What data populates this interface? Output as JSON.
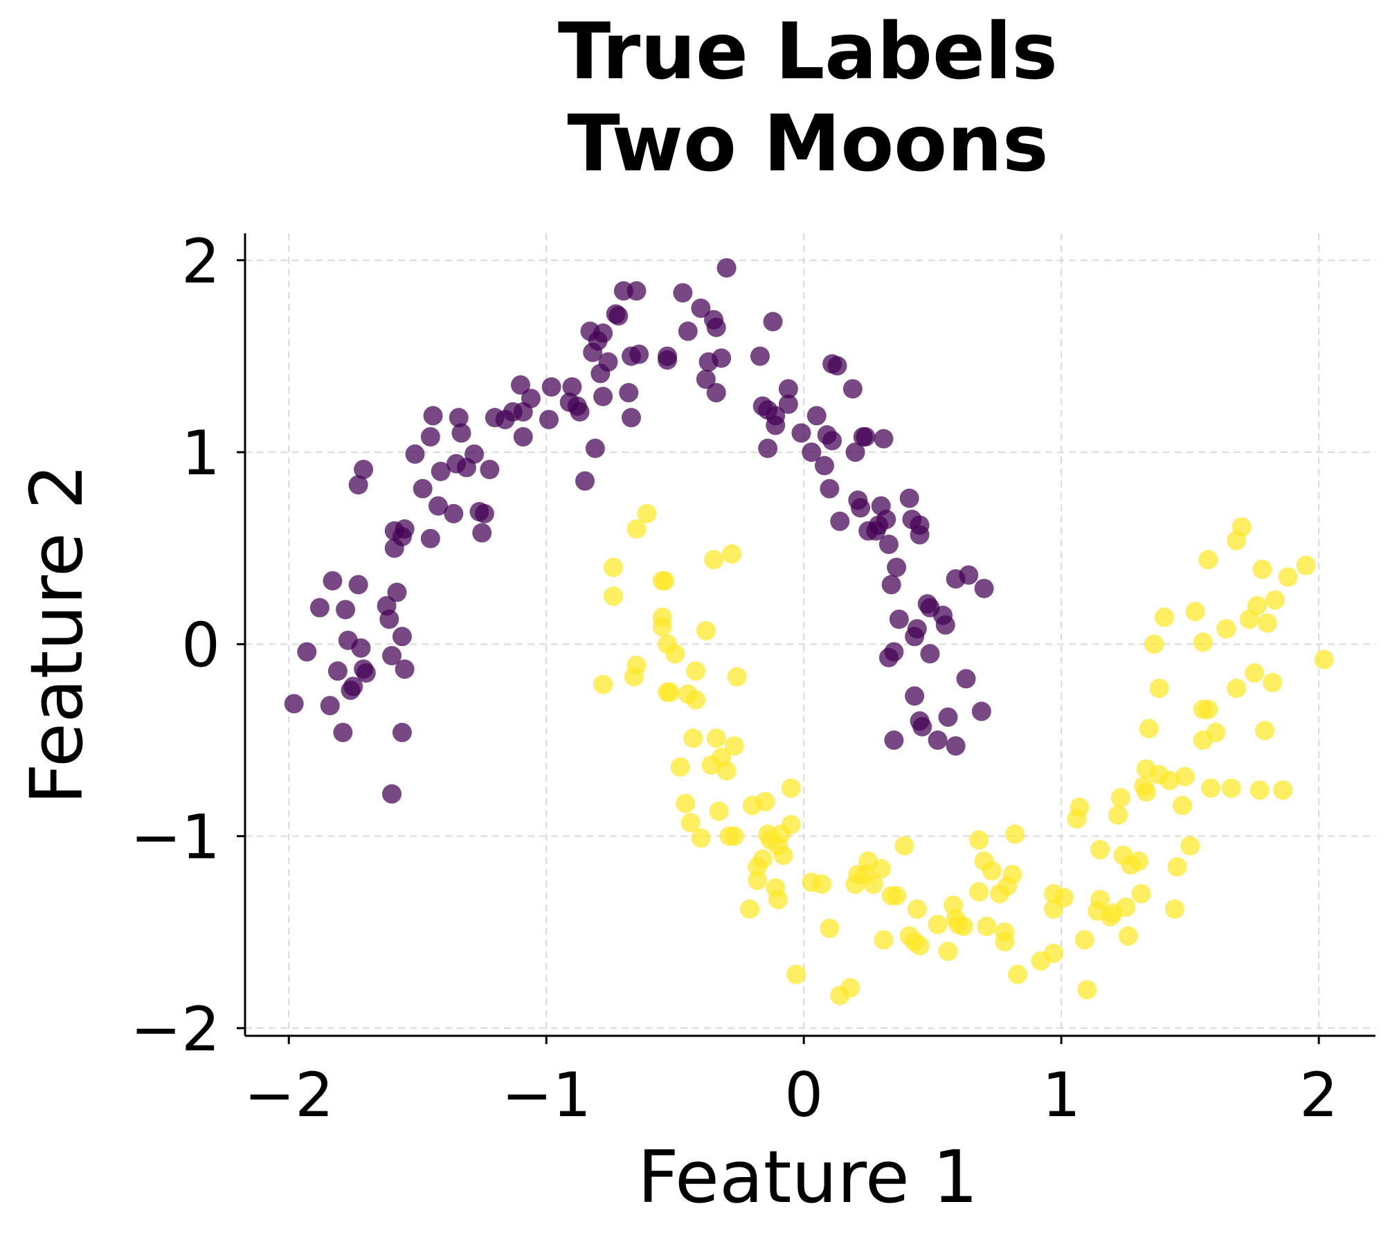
{
  "chart_data": {
    "type": "scatter",
    "title_lines": [
      "True Labels",
      "Two Moons"
    ],
    "xlabel": "Feature 1",
    "ylabel": "Feature 2",
    "xlim": [
      -2.17,
      2.22
    ],
    "ylim": [
      -2.04,
      2.14
    ],
    "xticks": [
      -2,
      -1,
      0,
      1,
      2
    ],
    "yticks": [
      -2,
      -1,
      0,
      1,
      2
    ],
    "x_tick_labels": [
      "−2",
      "−1",
      "0",
      "1",
      "2"
    ],
    "y_tick_labels": [
      "−2",
      "−1",
      "0",
      "1",
      "2"
    ],
    "grid": true,
    "legend": "none",
    "colors": {
      "class_0": "#440154",
      "class_1": "#fde725",
      "grid": "#d9d9d9",
      "axis": "#000000"
    },
    "series": [
      {
        "label": 0,
        "points": [
          [
            -1.98,
            -0.31
          ],
          [
            -1.93,
            -0.04
          ],
          [
            -1.88,
            0.19
          ],
          [
            -1.84,
            -0.32
          ],
          [
            -1.83,
            0.33
          ],
          [
            -1.81,
            -0.14
          ],
          [
            -1.79,
            -0.46
          ],
          [
            -1.78,
            0.18
          ],
          [
            -1.77,
            0.02
          ],
          [
            -1.76,
            -0.24
          ],
          [
            -1.75,
            -0.22
          ],
          [
            -1.73,
            0.31
          ],
          [
            -1.72,
            -0.02
          ],
          [
            -1.71,
            -0.13
          ],
          [
            -1.7,
            -0.15
          ],
          [
            -1.73,
            0.83
          ],
          [
            -1.71,
            0.91
          ],
          [
            -1.62,
            0.2
          ],
          [
            -1.61,
            0.13
          ],
          [
            -1.6,
            -0.78
          ],
          [
            -1.6,
            -0.06
          ],
          [
            -1.58,
            0.27
          ],
          [
            -1.56,
            0.04
          ],
          [
            -1.56,
            -0.46
          ],
          [
            -1.55,
            -0.13
          ],
          [
            -1.59,
            0.59
          ],
          [
            -1.59,
            0.5
          ],
          [
            -1.56,
            0.56
          ],
          [
            -1.55,
            0.6
          ],
          [
            -1.51,
            0.99
          ],
          [
            -1.48,
            0.81
          ],
          [
            -1.45,
            0.55
          ],
          [
            -1.45,
            1.08
          ],
          [
            -1.44,
            1.19
          ],
          [
            -1.42,
            0.72
          ],
          [
            -1.41,
            0.9
          ],
          [
            -1.36,
            0.68
          ],
          [
            -1.35,
            0.94
          ],
          [
            -1.34,
            1.18
          ],
          [
            -1.33,
            1.1
          ],
          [
            -1.31,
            0.92
          ],
          [
            -1.28,
            0.99
          ],
          [
            -1.26,
            0.69
          ],
          [
            -1.25,
            0.58
          ],
          [
            -1.24,
            0.68
          ],
          [
            -1.22,
            0.91
          ],
          [
            -1.2,
            1.18
          ],
          [
            -1.16,
            1.17
          ],
          [
            -1.13,
            1.21
          ],
          [
            -1.1,
            1.35
          ],
          [
            -1.09,
            1.08
          ],
          [
            -1.09,
            1.21
          ],
          [
            -1.06,
            1.28
          ],
          [
            -0.99,
            1.17
          ],
          [
            -0.98,
            1.34
          ],
          [
            -0.91,
            1.26
          ],
          [
            -0.9,
            1.34
          ],
          [
            -0.88,
            1.24
          ],
          [
            -0.87,
            1.21
          ],
          [
            -0.83,
            1.63
          ],
          [
            -0.82,
            1.52
          ],
          [
            -0.8,
            1.58
          ],
          [
            -0.79,
            1.41
          ],
          [
            -0.78,
            1.29
          ],
          [
            -0.78,
            1.62
          ],
          [
            -0.76,
            1.47
          ],
          [
            -0.72,
            1.71
          ],
          [
            -0.73,
            1.72
          ],
          [
            -0.7,
            1.84
          ],
          [
            -0.67,
            1.5
          ],
          [
            -0.65,
            1.84
          ],
          [
            -0.64,
            1.51
          ],
          [
            -0.68,
            1.31
          ],
          [
            -0.67,
            1.18
          ],
          [
            -0.85,
            0.85
          ],
          [
            -0.81,
            1.02
          ],
          [
            -0.53,
            1.5
          ],
          [
            -0.53,
            1.48
          ],
          [
            -0.47,
            1.83
          ],
          [
            -0.45,
            1.63
          ],
          [
            -0.4,
            1.75
          ],
          [
            -0.38,
            1.38
          ],
          [
            -0.37,
            1.47
          ],
          [
            -0.35,
            1.69
          ],
          [
            -0.34,
            1.65
          ],
          [
            -0.34,
            1.31
          ],
          [
            -0.32,
            1.49
          ],
          [
            -0.3,
            1.96
          ],
          [
            -0.17,
            1.5
          ],
          [
            -0.16,
            1.24
          ],
          [
            -0.14,
            1.22
          ],
          [
            -0.14,
            1.02
          ],
          [
            -0.12,
            1.68
          ],
          [
            -0.11,
            1.19
          ],
          [
            -0.11,
            1.14
          ],
          [
            -0.06,
            1.33
          ],
          [
            -0.06,
            1.25
          ],
          [
            -0.01,
            1.1
          ],
          [
            0.03,
            1.0
          ],
          [
            0.05,
            1.19
          ],
          [
            0.08,
            0.93
          ],
          [
            0.09,
            1.09
          ],
          [
            0.1,
            0.81
          ],
          [
            0.11,
            1.06
          ],
          [
            0.11,
            1.46
          ],
          [
            0.13,
            1.45
          ],
          [
            0.14,
            0.64
          ],
          [
            0.19,
            1.33
          ],
          [
            0.2,
            1.0
          ],
          [
            0.21,
            0.75
          ],
          [
            0.22,
            0.71
          ],
          [
            0.23,
            1.08
          ],
          [
            0.24,
            1.08
          ],
          [
            0.25,
            0.59
          ],
          [
            0.28,
            0.59
          ],
          [
            0.29,
            0.62
          ],
          [
            0.3,
            0.72
          ],
          [
            0.31,
            1.07
          ],
          [
            0.32,
            0.65
          ],
          [
            0.33,
            0.52
          ],
          [
            0.33,
            -0.07
          ],
          [
            0.34,
            0.31
          ],
          [
            0.35,
            -0.04
          ],
          [
            0.36,
            0.4
          ],
          [
            0.37,
            0.13
          ],
          [
            0.35,
            -0.5
          ],
          [
            0.41,
            0.76
          ],
          [
            0.42,
            0.65
          ],
          [
            0.43,
            0.04
          ],
          [
            0.43,
            -0.27
          ],
          [
            0.44,
            0.08
          ],
          [
            0.45,
            0.57
          ],
          [
            0.45,
            -0.4
          ],
          [
            0.45,
            0.62
          ],
          [
            0.46,
            -0.43
          ],
          [
            0.48,
            0.21
          ],
          [
            0.49,
            0.19
          ],
          [
            0.49,
            -0.05
          ],
          [
            0.54,
            0.15
          ],
          [
            0.52,
            -0.5
          ],
          [
            0.55,
            0.1
          ],
          [
            0.56,
            -0.38
          ],
          [
            0.59,
            0.34
          ],
          [
            0.59,
            -0.53
          ],
          [
            0.63,
            -0.18
          ],
          [
            0.64,
            0.36
          ],
          [
            0.69,
            -0.35
          ],
          [
            0.7,
            0.29
          ]
        ]
      },
      {
        "label": 1,
        "points": [
          [
            -0.78,
            -0.21
          ],
          [
            -0.74,
            0.4
          ],
          [
            -0.74,
            0.25
          ],
          [
            -0.66,
            -0.17
          ],
          [
            -0.65,
            -0.11
          ],
          [
            -0.65,
            0.6
          ],
          [
            -0.61,
            0.68
          ],
          [
            -0.55,
            0.33
          ],
          [
            -0.54,
            0.33
          ],
          [
            -0.55,
            0.14
          ],
          [
            -0.55,
            0.09
          ],
          [
            -0.53,
            0.0
          ],
          [
            -0.53,
            -0.25
          ],
          [
            -0.52,
            -0.25
          ],
          [
            -0.5,
            -0.05
          ],
          [
            -0.45,
            -0.26
          ],
          [
            -0.42,
            -0.14
          ],
          [
            -0.42,
            -0.29
          ],
          [
            -0.38,
            0.07
          ],
          [
            -0.35,
            0.44
          ],
          [
            -0.34,
            -0.49
          ],
          [
            -0.32,
            -0.59
          ],
          [
            -0.28,
            0.47
          ],
          [
            -0.26,
            -0.17
          ],
          [
            -0.43,
            -0.49
          ],
          [
            -0.48,
            -0.64
          ],
          [
            -0.46,
            -0.83
          ],
          [
            -0.44,
            -0.93
          ],
          [
            -0.4,
            -1.01
          ],
          [
            -0.36,
            -0.63
          ],
          [
            -0.33,
            -0.87
          ],
          [
            -0.3,
            -0.66
          ],
          [
            -0.29,
            -1.0
          ],
          [
            -0.27,
            -0.53
          ],
          [
            -0.27,
            -1.0
          ],
          [
            -0.2,
            -0.84
          ],
          [
            -0.21,
            -1.38
          ],
          [
            -0.18,
            -1.23
          ],
          [
            -0.18,
            -1.16
          ],
          [
            -0.16,
            -1.12
          ],
          [
            -0.15,
            -0.82
          ],
          [
            -0.14,
            -0.99
          ],
          [
            -0.13,
            -1.02
          ],
          [
            -0.11,
            -1.27
          ],
          [
            -0.1,
            -1.33
          ],
          [
            -0.1,
            -1.05
          ],
          [
            -0.09,
            -0.99
          ],
          [
            -0.08,
            -1.1
          ],
          [
            -0.05,
            -0.75
          ],
          [
            -0.05,
            -0.94
          ],
          [
            -0.03,
            -1.72
          ],
          [
            0.03,
            -1.24
          ],
          [
            0.07,
            -1.25
          ],
          [
            0.1,
            -1.48
          ],
          [
            0.14,
            -1.83
          ],
          [
            0.18,
            -1.79
          ],
          [
            0.2,
            -1.25
          ],
          [
            0.21,
            -1.2
          ],
          [
            0.24,
            -1.2
          ],
          [
            0.25,
            -1.13
          ],
          [
            0.27,
            -1.25
          ],
          [
            0.3,
            -1.17
          ],
          [
            0.31,
            -1.54
          ],
          [
            0.34,
            -1.31
          ],
          [
            0.36,
            -1.31
          ],
          [
            0.39,
            -1.05
          ],
          [
            0.41,
            -1.52
          ],
          [
            0.43,
            -1.55
          ],
          [
            0.44,
            -1.38
          ],
          [
            0.45,
            -1.57
          ],
          [
            0.52,
            -1.46
          ],
          [
            0.56,
            -1.6
          ],
          [
            0.58,
            -1.36
          ],
          [
            0.59,
            -1.43
          ],
          [
            0.6,
            -1.46
          ],
          [
            0.62,
            -1.47
          ],
          [
            0.68,
            -1.29
          ],
          [
            0.68,
            -1.02
          ],
          [
            0.7,
            -1.13
          ],
          [
            0.71,
            -1.47
          ],
          [
            0.73,
            -1.18
          ],
          [
            0.76,
            -1.3
          ],
          [
            0.78,
            -1.5
          ],
          [
            0.78,
            -1.55
          ],
          [
            0.79,
            -1.26
          ],
          [
            0.81,
            -1.2
          ],
          [
            0.82,
            -0.99
          ],
          [
            0.83,
            -1.72
          ],
          [
            0.92,
            -1.65
          ],
          [
            0.97,
            -1.3
          ],
          [
            0.97,
            -1.38
          ],
          [
            0.97,
            -1.61
          ],
          [
            1.01,
            -1.32
          ],
          [
            1.06,
            -0.91
          ],
          [
            1.07,
            -0.85
          ],
          [
            1.09,
            -1.54
          ],
          [
            1.1,
            -1.8
          ],
          [
            1.14,
            -1.39
          ],
          [
            1.15,
            -1.07
          ],
          [
            1.15,
            -1.33
          ],
          [
            1.19,
            -1.42
          ],
          [
            1.2,
            -1.4
          ],
          [
            1.22,
            -0.89
          ],
          [
            1.23,
            -0.8
          ],
          [
            1.24,
            -1.1
          ],
          [
            1.25,
            -1.37
          ],
          [
            1.26,
            -1.52
          ],
          [
            1.27,
            -1.15
          ],
          [
            1.3,
            -1.13
          ],
          [
            1.31,
            -1.3
          ],
          [
            1.32,
            -0.74
          ],
          [
            1.33,
            -0.77
          ],
          [
            1.33,
            -0.65
          ],
          [
            1.34,
            -0.44
          ],
          [
            1.36,
            0.0
          ],
          [
            1.38,
            -0.68
          ],
          [
            1.38,
            -0.23
          ],
          [
            1.4,
            0.14
          ],
          [
            1.42,
            -0.71
          ],
          [
            1.44,
            -1.38
          ],
          [
            1.45,
            -1.16
          ],
          [
            1.47,
            -0.84
          ],
          [
            1.48,
            -0.69
          ],
          [
            1.5,
            -1.05
          ],
          [
            1.52,
            0.17
          ],
          [
            1.55,
            0.01
          ],
          [
            1.55,
            -0.34
          ],
          [
            1.55,
            -0.5
          ],
          [
            1.57,
            -0.34
          ],
          [
            1.57,
            0.44
          ],
          [
            1.58,
            -0.75
          ],
          [
            1.6,
            -0.46
          ],
          [
            1.64,
            0.08
          ],
          [
            1.66,
            -0.75
          ],
          [
            1.68,
            -0.23
          ],
          [
            1.68,
            0.54
          ],
          [
            1.7,
            0.61
          ],
          [
            1.73,
            0.13
          ],
          [
            1.75,
            -0.15
          ],
          [
            1.76,
            0.2
          ],
          [
            1.77,
            -0.76
          ],
          [
            1.78,
            0.39
          ],
          [
            1.79,
            -0.45
          ],
          [
            1.8,
            0.11
          ],
          [
            1.82,
            -0.2
          ],
          [
            1.83,
            0.23
          ],
          [
            1.86,
            -0.76
          ],
          [
            1.88,
            0.35
          ],
          [
            1.95,
            0.41
          ],
          [
            2.02,
            -0.08
          ]
        ]
      }
    ]
  }
}
